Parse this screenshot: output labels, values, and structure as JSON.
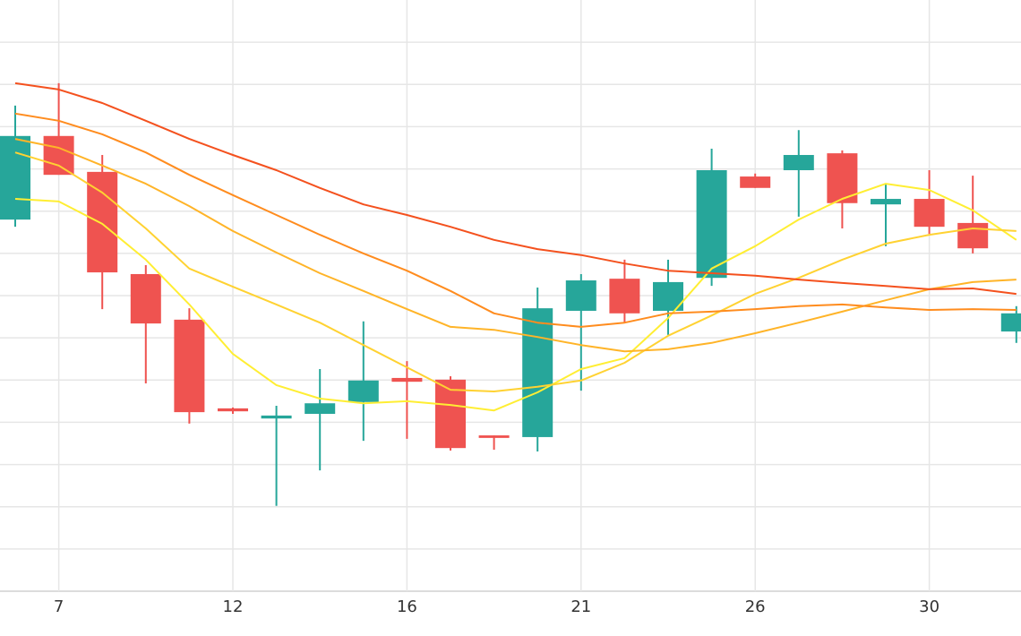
{
  "chart_data": {
    "type": "candlestick",
    "categories": [
      null,
      "7",
      null,
      null,
      null,
      "12",
      null,
      null,
      null,
      "16",
      null,
      null,
      null,
      "21",
      null,
      null,
      null,
      "26",
      null,
      null,
      null,
      "30",
      null,
      null
    ],
    "open": [
      8.8,
      10.78,
      9.93,
      7.51,
      6.43,
      4.33,
      4.09,
      4.2,
      4.48,
      5.05,
      5.01,
      3.69,
      3.65,
      6.64,
      7.4,
      6.64,
      7.42,
      9.82,
      9.97,
      10.37,
      9.16,
      9.29,
      8.72,
      6.15
    ],
    "high": [
      11.5,
      12.03,
      10.33,
      7.72,
      6.7,
      4.35,
      4.39,
      5.26,
      6.39,
      5.45,
      5.09,
      3.69,
      7.19,
      7.51,
      7.85,
      7.85,
      10.48,
      9.89,
      10.92,
      10.44,
      9.65,
      9.97,
      9.84,
      6.75
    ],
    "low": [
      8.63,
      9.86,
      6.68,
      4.92,
      3.97,
      4.2,
      2.02,
      2.86,
      3.56,
      3.61,
      3.33,
      3.35,
      3.31,
      4.75,
      6.36,
      6.07,
      7.23,
      9.55,
      8.87,
      8.59,
      8.17,
      8.46,
      8.0,
      5.88
    ],
    "close": [
      10.78,
      9.86,
      7.55,
      6.34,
      4.24,
      4.26,
      4.16,
      4.45,
      4.99,
      4.96,
      3.39,
      3.63,
      6.7,
      7.36,
      6.58,
      7.32,
      9.97,
      9.55,
      10.33,
      9.19,
      9.29,
      8.63,
      8.12,
      6.58
    ],
    "up_color": "#26a69a",
    "down_color": "#ef5350",
    "series": [
      {
        "color": "#ffee33",
        "values": [
          9.29,
          9.23,
          8.7,
          7.85,
          6.79,
          5.62,
          4.88,
          4.56,
          4.45,
          4.5,
          4.41,
          4.28,
          4.71,
          5.26,
          5.52,
          6.47,
          7.64,
          8.17,
          8.8,
          9.29,
          9.65,
          9.5,
          9.02,
          8.32
        ]
      },
      {
        "color": "#ffd232",
        "values": [
          10.39,
          10.08,
          9.44,
          8.59,
          7.64,
          7.21,
          6.79,
          6.36,
          5.83,
          5.3,
          4.77,
          4.73,
          4.84,
          4.99,
          5.41,
          6.05,
          6.53,
          7.04,
          7.42,
          7.85,
          8.23,
          8.44,
          8.59,
          8.53
        ]
      },
      {
        "color": "#ffb428",
        "values": [
          10.71,
          10.5,
          10.08,
          9.65,
          9.12,
          8.53,
          8.02,
          7.53,
          7.11,
          6.68,
          6.26,
          6.19,
          6.02,
          5.83,
          5.68,
          5.73,
          5.88,
          6.11,
          6.36,
          6.62,
          6.89,
          7.15,
          7.32,
          7.38
        ]
      },
      {
        "color": "#ff8c1e",
        "values": [
          11.31,
          11.14,
          10.82,
          10.39,
          9.86,
          9.38,
          8.91,
          8.44,
          8.0,
          7.59,
          7.11,
          6.58,
          6.36,
          6.26,
          6.36,
          6.58,
          6.62,
          6.68,
          6.75,
          6.79,
          6.72,
          6.66,
          6.68,
          6.66
        ]
      },
      {
        "color": "#f4511e",
        "values": [
          12.03,
          11.88,
          11.56,
          11.14,
          10.71,
          10.33,
          9.97,
          9.55,
          9.16,
          8.91,
          8.63,
          8.32,
          8.1,
          7.96,
          7.76,
          7.59,
          7.53,
          7.47,
          7.38,
          7.3,
          7.23,
          7.15,
          7.17,
          7.04
        ]
      }
    ],
    "ylim": [
      0,
      14
    ],
    "yticks": [
      0,
      1,
      2,
      3,
      4,
      5,
      6,
      7,
      8,
      9,
      10,
      11,
      12,
      13
    ],
    "grid": true
  }
}
